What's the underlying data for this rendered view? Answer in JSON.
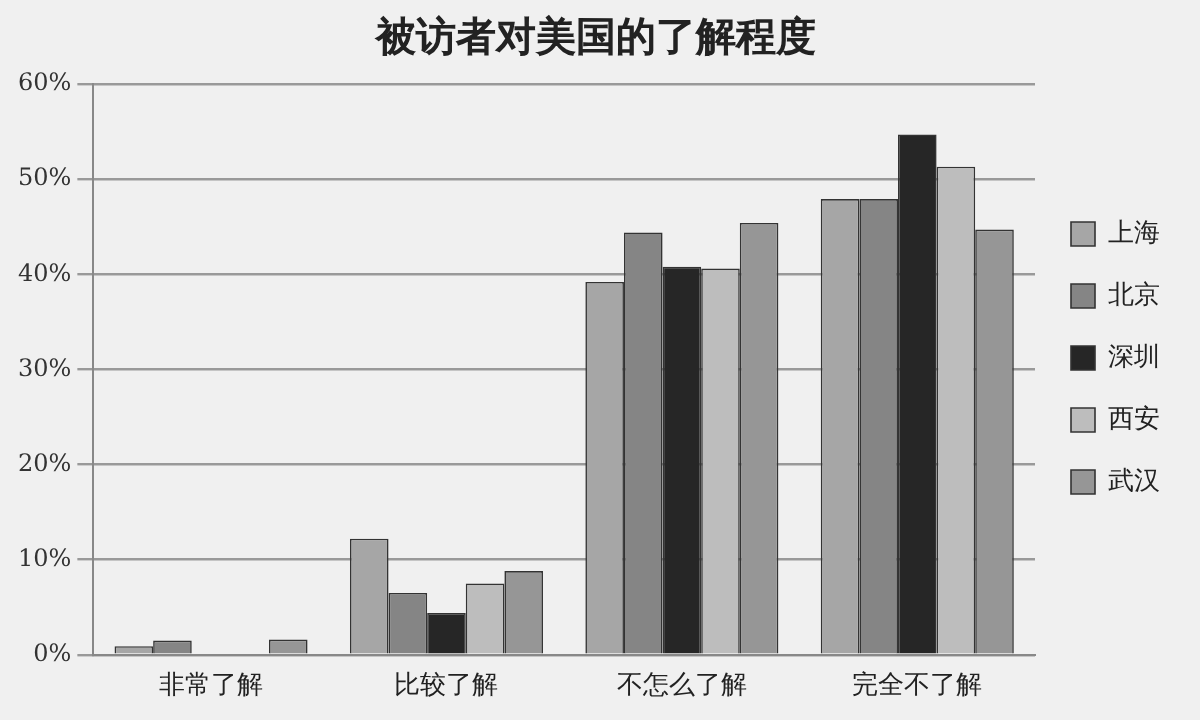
{
  "chart_data": {
    "type": "bar",
    "title": "被访者对美国的了解程度",
    "categories": [
      "非常了解",
      "比较了解",
      "不怎么了解",
      "完全不了解"
    ],
    "series": [
      {
        "name": "上海",
        "color": "#a6a6a6",
        "values": [
          0.9,
          12.2,
          39.2,
          47.9
        ]
      },
      {
        "name": "北京",
        "color": "#858585",
        "values": [
          1.5,
          6.5,
          44.4,
          47.9
        ]
      },
      {
        "name": "深圳",
        "color": "#262626",
        "values": [
          0,
          4.4,
          40.8,
          54.7
        ]
      },
      {
        "name": "西安",
        "color": "#bdbdbd",
        "values": [
          0,
          7.5,
          40.6,
          51.3
        ]
      },
      {
        "name": "武汉",
        "color": "#969696",
        "values": [
          1.6,
          8.8,
          45.4,
          44.7
        ]
      }
    ],
    "ylim": [
      0,
      60
    ],
    "yticks": [
      {
        "value": 0,
        "label": "0%"
      },
      {
        "value": 10,
        "label": "10%"
      },
      {
        "value": 20,
        "label": "20%"
      },
      {
        "value": 30,
        "label": "30%"
      },
      {
        "value": 40,
        "label": "40%"
      },
      {
        "value": 50,
        "label": "50%"
      },
      {
        "value": 60,
        "label": "60%"
      }
    ],
    "grid": "y",
    "legend": "right"
  }
}
